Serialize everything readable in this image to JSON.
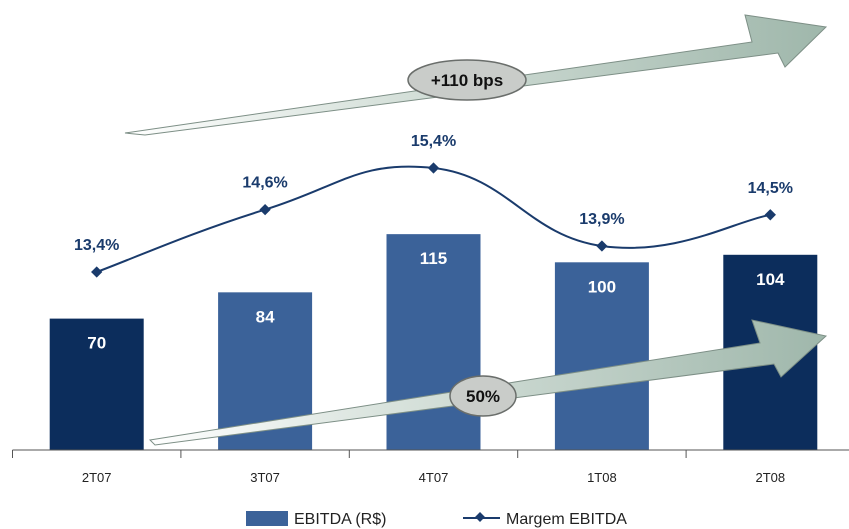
{
  "chart_data": {
    "type": "bar",
    "categories": [
      "2T07",
      "3T07",
      "4T07",
      "1T08",
      "2T08"
    ],
    "series": [
      {
        "name": "EBITDA (R$)",
        "type": "bar",
        "values": [
          70,
          84,
          115,
          100,
          104
        ],
        "labels": [
          "70",
          "84",
          "115",
          "100",
          "104"
        ],
        "colors": [
          "#0c2d5c",
          "#3b6299",
          "#3b6299",
          "#3b6299",
          "#0c2d5c"
        ]
      },
      {
        "name": "Margem EBITDA",
        "type": "line",
        "values": [
          13.4,
          14.6,
          15.4,
          13.9,
          14.5
        ],
        "labels": [
          "13,4%",
          "14,6%",
          "15,4%",
          "13,9%",
          "14,5%"
        ],
        "color": "#1a3b6c"
      }
    ],
    "annotations": {
      "margin_growth": "+110 bps",
      "ebitda_growth": "50%"
    },
    "legend": {
      "position": "bottom",
      "items": [
        "EBITDA (R$)",
        "Margem EBITDA"
      ]
    },
    "title": "",
    "xlabel": "",
    "ylabel": "",
    "grid": false
  }
}
